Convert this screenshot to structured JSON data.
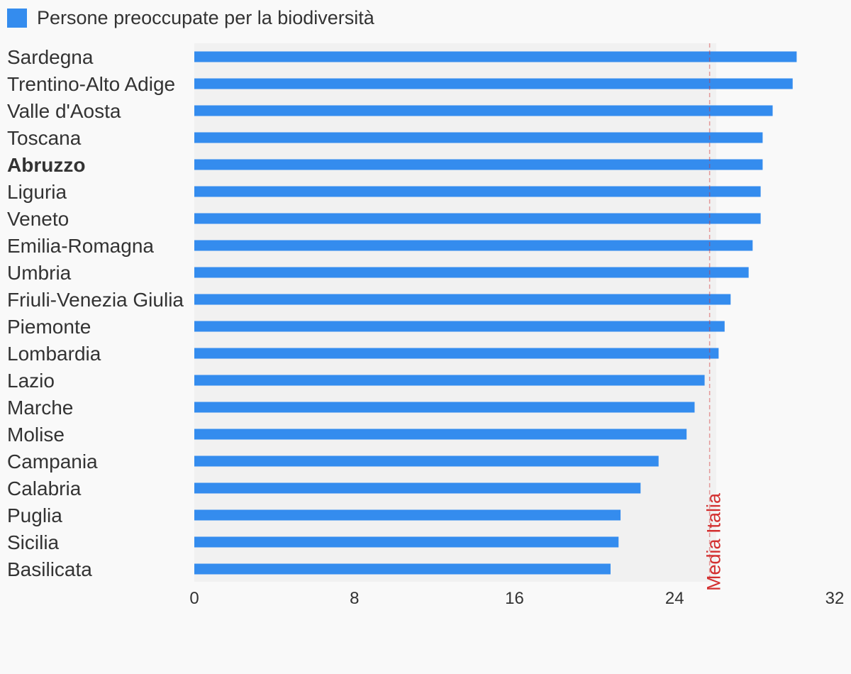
{
  "legend": {
    "label": "Persone preoccupate per la biodiversità"
  },
  "colors": {
    "bar": "#348cee",
    "reference": "#d32f2f",
    "plot_bg": "#f1f1f1",
    "page_bg": "#f9f9f9"
  },
  "chart_data": {
    "type": "bar",
    "orientation": "horizontal",
    "grid": false,
    "legend_placement": "top-left",
    "categories": [
      "Sardegna",
      "Trentino-Alto Adige",
      "Valle d'Aosta",
      "Toscana",
      "Abruzzo",
      "Liguria",
      "Veneto",
      "Emilia-Romagna",
      "Umbria",
      "Friuli-Venezia Giulia",
      "Piemonte",
      "Lombardia",
      "Lazio",
      "Marche",
      "Molise",
      "Campania",
      "Calabria",
      "Puglia",
      "Sicilia",
      "Basilicata"
    ],
    "highlighted_category": "Abruzzo",
    "series": [
      {
        "name": "Persone preoccupate per la biodiversità",
        "values": [
          30.1,
          29.9,
          28.9,
          28.4,
          28.4,
          28.3,
          28.3,
          27.9,
          27.7,
          26.8,
          26.5,
          26.2,
          25.5,
          25.0,
          24.6,
          23.2,
          22.3,
          21.3,
          21.2,
          20.8
        ]
      }
    ],
    "xlim": [
      0,
      32
    ],
    "xticks": [
      "0",
      "8",
      "16",
      "24",
      "32"
    ],
    "reference_line": {
      "label": "Media Italia",
      "value": 25.75
    }
  }
}
